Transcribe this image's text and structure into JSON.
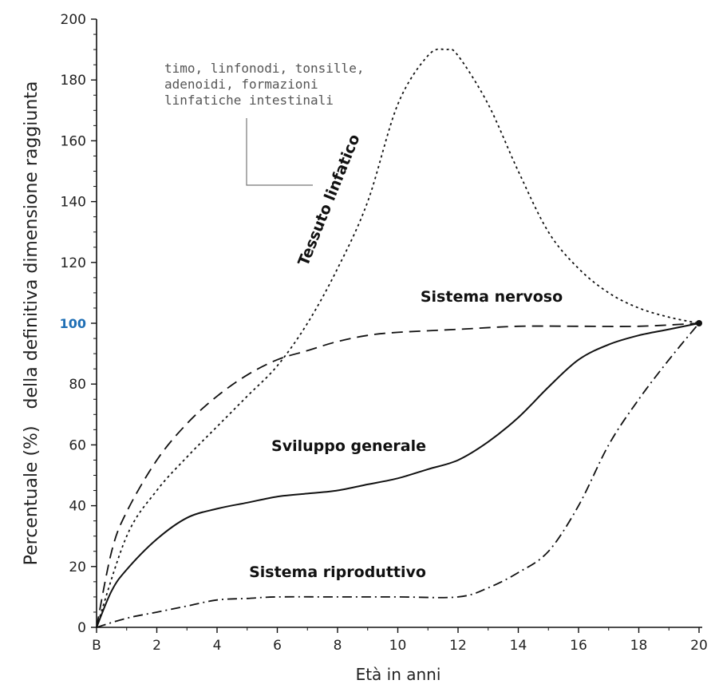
{
  "chart_data": {
    "type": "line",
    "ylabel": "Percentuale (%)   della definitiva dimensione raggiunta",
    "xlabel": "Età in anni",
    "xlim": [
      0,
      20
    ],
    "ylim": [
      0,
      200
    ],
    "x_ticks": [
      {
        "value": 0,
        "label": "B"
      },
      {
        "value": 2,
        "label": "2"
      },
      {
        "value": 4,
        "label": "4"
      },
      {
        "value": 6,
        "label": "6"
      },
      {
        "value": 8,
        "label": "8"
      },
      {
        "value": 10,
        "label": "10"
      },
      {
        "value": 12,
        "label": "12"
      },
      {
        "value": 14,
        "label": "14"
      },
      {
        "value": 16,
        "label": "16"
      },
      {
        "value": 18,
        "label": "18"
      },
      {
        "value": 20,
        "label": "20"
      }
    ],
    "y_ticks": [
      {
        "value": 0,
        "label": "0"
      },
      {
        "value": 20,
        "label": "20"
      },
      {
        "value": 40,
        "label": "40"
      },
      {
        "value": 60,
        "label": "60"
      },
      {
        "value": 80,
        "label": "80"
      },
      {
        "value": 100,
        "label": "100",
        "highlight": true
      },
      {
        "value": 120,
        "label": "120"
      },
      {
        "value": 140,
        "label": "140"
      },
      {
        "value": 160,
        "label": "160"
      },
      {
        "value": 180,
        "label": "180"
      },
      {
        "value": 200,
        "label": "200"
      }
    ],
    "grid": false,
    "series": [
      {
        "name": "Tessuto linfatico",
        "style": "dotted",
        "x": [
          0,
          1,
          2,
          3,
          4,
          5,
          6,
          7,
          8,
          9,
          10,
          11,
          11.6,
          12,
          13,
          14,
          15,
          16,
          17,
          18,
          19,
          20
        ],
        "y": [
          0,
          30,
          45,
          56,
          66,
          76,
          86,
          100,
          118,
          140,
          172,
          188,
          190,
          188,
          172,
          150,
          130,
          118,
          110,
          105,
          102,
          100
        ]
      },
      {
        "name": "Sistema nervoso",
        "style": "dashed",
        "x": [
          0,
          0.5,
          1,
          2,
          3,
          4,
          5,
          6,
          7,
          8,
          9,
          10,
          12,
          14,
          16,
          18,
          20
        ],
        "y": [
          0,
          25,
          38,
          55,
          67,
          76,
          83,
          88,
          91,
          94,
          96,
          97,
          98,
          99,
          99,
          99,
          100
        ]
      },
      {
        "name": "Sviluppo generale",
        "style": "solid",
        "x": [
          0,
          0.5,
          1,
          2,
          3,
          4,
          5,
          6,
          7,
          8,
          9,
          10,
          11,
          12,
          13,
          14,
          15,
          16,
          17,
          18,
          19,
          20
        ],
        "y": [
          0,
          12,
          19,
          29,
          36,
          39,
          41,
          43,
          44,
          45,
          47,
          49,
          52,
          55,
          61,
          69,
          79,
          88,
          93,
          96,
          98,
          100
        ]
      },
      {
        "name": "Sistema riproduttivo",
        "style": "dashdot",
        "x": [
          0,
          1,
          2,
          3,
          4,
          5,
          6,
          8,
          10,
          12,
          13,
          14,
          15,
          16,
          17,
          18,
          19,
          20
        ],
        "y": [
          0,
          3,
          5,
          7,
          9,
          9.5,
          10,
          10,
          10,
          10,
          13,
          18,
          25,
          40,
          60,
          75,
          88,
          100
        ]
      }
    ],
    "annotations": [
      {
        "text_lines": [
          "timo, linfonodi, tonsille,",
          "adenoidi, formazioni",
          "linfatiche intestinali"
        ],
        "refers_to": "Tessuto linfatico"
      }
    ]
  }
}
